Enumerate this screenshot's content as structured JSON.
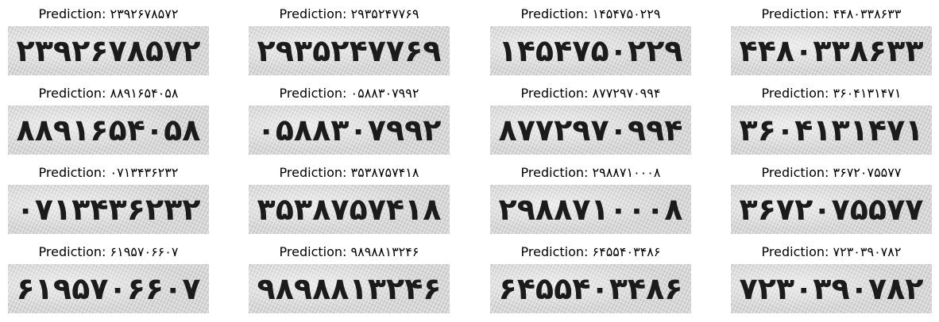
{
  "prefix": "Prediction: ",
  "samples": [
    {
      "prediction": "۲۳۹۲۶۷۸۵۷۲",
      "image_text": "۲۳۹۲۶۷۸۵۷۲"
    },
    {
      "prediction": "۲۹۳۵۲۴۷۷۶۹",
      "image_text": "۲۹۳۵۲۴۷۷۶۹"
    },
    {
      "prediction": "۱۴۵۴۷۵۰۲۲۹",
      "image_text": "۱۴۵۴۷۵۰۲۲۹"
    },
    {
      "prediction": "۴۴۸۰۳۳۸۶۳۳",
      "image_text": "۴۴۸۰۳۳۸۶۳۳"
    },
    {
      "prediction": "۸۸۹۱۶۵۴۰۵۸",
      "image_text": "۸۸۹۱۶۵۴۰۵۸"
    },
    {
      "prediction": "۰۵۸۸۳۰۷۹۹۲",
      "image_text": "۰۵۸۸۳۰۷۹۹۲"
    },
    {
      "prediction": "۸۷۷۲۹۷۰۹۹۴",
      "image_text": "۸۷۷۲۹۷۰۹۹۴"
    },
    {
      "prediction": "۳۶۰۴۱۳۱۴۷۱",
      "image_text": "۳۶۰۴۱۳۱۴۷۱"
    },
    {
      "prediction": "۰۷۱۳۴۳۶۲۳۲",
      "image_text": "۰۷۱۳۴۳۶۲۳۲"
    },
    {
      "prediction": "۳۵۳۸۷۵۷۴۱۸",
      "image_text": "۳۵۳۸۷۵۷۴۱۸"
    },
    {
      "prediction": "۲۹۸۸۷۱۰۰۰۸",
      "image_text": "۲۹۸۸۷۱۰۰۰۸"
    },
    {
      "prediction": "۳۶۷۲۰۷۵۵۷۷",
      "image_text": "۳۶۷۲۰۷۵۵۷۷"
    },
    {
      "prediction": "۶۱۹۵۷۰۶۶۰۷",
      "image_text": "۶۱۹۵۷۰۶۶۰۷"
    },
    {
      "prediction": "۹۸۹۸۸۱۳۲۴۶",
      "image_text": "۹۸۹۸۸۱۳۲۴۶"
    },
    {
      "prediction": "۶۴۵۵۴۰۳۴۸۶",
      "image_text": "۶۴۵۵۴۰۳۴۸۶"
    },
    {
      "prediction": "۷۲۳۰۳۹۰۷۸۲",
      "image_text": "۷۲۳۰۳۹۰۷۸۲"
    }
  ],
  "colors": {
    "background": "#ffffff",
    "title_text": "#000000",
    "plate_background": "#d6d6d6",
    "plate_digits": "#1b1b1b"
  }
}
